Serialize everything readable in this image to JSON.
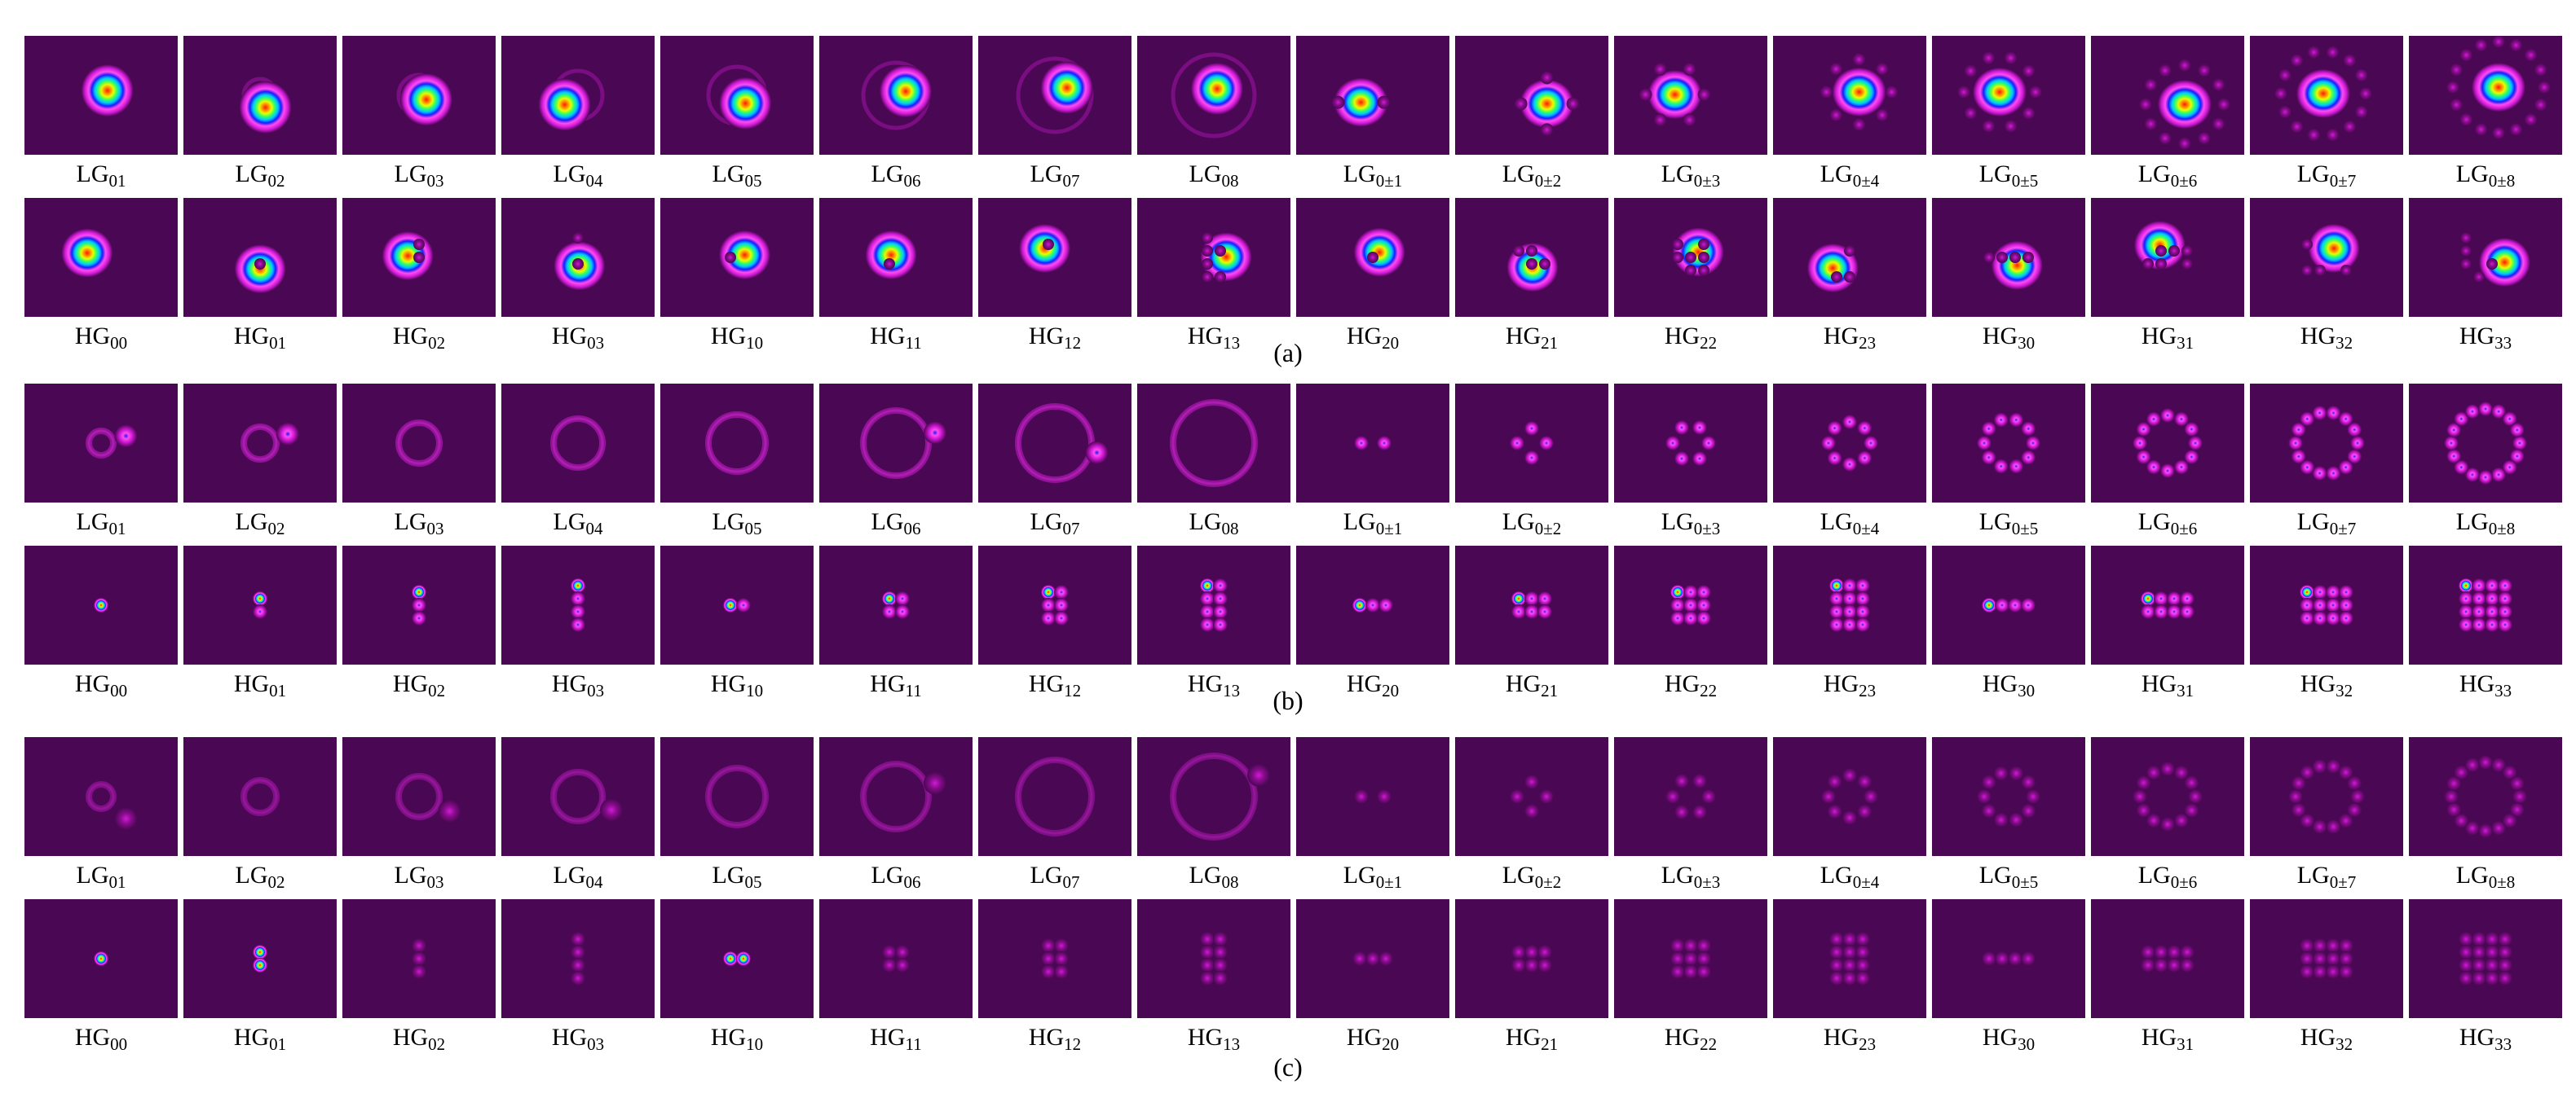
{
  "figure": {
    "panels": [
      {
        "id": "a",
        "caption": "(a)",
        "rows": [
          {
            "family": "LG",
            "indices": [
              "01",
              "02",
              "03",
              "04",
              "05",
              "06",
              "07",
              "08",
              "0±1",
              "0±2",
              "0±3",
              "0±4",
              "0±5",
              "0±6",
              "0±7",
              "0±8"
            ]
          },
          {
            "family": "HG",
            "indices": [
              "00",
              "01",
              "02",
              "03",
              "10",
              "11",
              "12",
              "13",
              "20",
              "21",
              "22",
              "23",
              "30",
              "31",
              "32",
              "33"
            ]
          }
        ]
      },
      {
        "id": "b",
        "caption": "(b)",
        "rows": [
          {
            "family": "LG",
            "indices": [
              "01",
              "02",
              "03",
              "04",
              "05",
              "06",
              "07",
              "08",
              "0±1",
              "0±2",
              "0±3",
              "0±4",
              "0±5",
              "0±6",
              "0±7",
              "0±8"
            ]
          },
          {
            "family": "HG",
            "indices": [
              "00",
              "01",
              "02",
              "03",
              "10",
              "11",
              "12",
              "13",
              "20",
              "21",
              "22",
              "23",
              "30",
              "31",
              "32",
              "33"
            ]
          }
        ]
      },
      {
        "id": "c",
        "caption": "(c)",
        "rows": [
          {
            "family": "LG",
            "indices": [
              "01",
              "02",
              "03",
              "04",
              "05",
              "06",
              "07",
              "08",
              "0±1",
              "0±2",
              "0±3",
              "0±4",
              "0±5",
              "0±6",
              "0±7",
              "0±8"
            ]
          },
          {
            "family": "HG",
            "indices": [
              "00",
              "01",
              "02",
              "03",
              "10",
              "11",
              "12",
              "13",
              "20",
              "21",
              "22",
              "23",
              "30",
              "31",
              "32",
              "33"
            ]
          }
        ]
      }
    ],
    "colors": {
      "background": "#4a0753",
      "colormap": [
        "#4a0753",
        "#8a0c8e",
        "#d21ad8",
        "#ff4df0",
        "#1b1bff",
        "#00c8ff",
        "#33ff66",
        "#e6ff00",
        "#ff8800",
        "#ff1a00"
      ]
    }
  }
}
